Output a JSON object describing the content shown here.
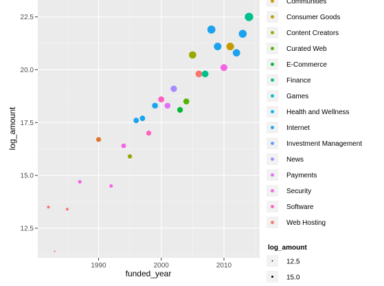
{
  "chart_data": {
    "type": "scatter",
    "xlabel": "funded_year",
    "ylabel": "log_amount",
    "xlim": [
      1980.3,
      2015.7
    ],
    "ylim": [
      11.1,
      23.3
    ],
    "x_ticks": [
      1990,
      2000,
      2010
    ],
    "y_ticks": [
      12.5,
      15.0,
      17.5,
      20.0,
      22.5
    ],
    "x_tick_labels": [
      "1990",
      "2000",
      "2010"
    ],
    "y_tick_labels": [
      "12.5",
      "15.0",
      "17.5",
      "20.0",
      "22.5"
    ],
    "grid": true,
    "legend_placement": "right",
    "color_legend": {
      "items": [
        {
          "label": "Communities",
          "color": "#C49A00"
        },
        {
          "label": "Consumer Goods",
          "color": "#B79F00"
        },
        {
          "label": "Content Creators",
          "color": "#99A800"
        },
        {
          "label": "Curated Web",
          "color": "#53B400"
        },
        {
          "label": "E-Commerce",
          "color": "#00B936"
        },
        {
          "label": "Finance",
          "color": "#00C08B"
        },
        {
          "label": "Games",
          "color": "#00BFC4"
        },
        {
          "label": "Health and Wellness",
          "color": "#00B4F0"
        },
        {
          "label": "Internet",
          "color": "#1BA3EE"
        },
        {
          "label": "Investment Management",
          "color": "#619CFF"
        },
        {
          "label": "News",
          "color": "#A58AFF"
        },
        {
          "label": "Payments",
          "color": "#DF70F8"
        },
        {
          "label": "Security",
          "color": "#F564E3"
        },
        {
          "label": "Software",
          "color": "#FF62BC"
        },
        {
          "label": "Web Hosting",
          "color": "#F8766D"
        }
      ]
    },
    "size_legend": {
      "title": "log_amount",
      "items": [
        {
          "label": "12.5",
          "value": 12.5
        },
        {
          "label": "15.0",
          "value": 15.0
        }
      ]
    },
    "points": [
      {
        "x": 1982,
        "y": 13.5,
        "color": "#F8766D"
      },
      {
        "x": 1983,
        "y": 11.4,
        "color": "#F8766D"
      },
      {
        "x": 1985,
        "y": 13.4,
        "color": "#F8766D"
      },
      {
        "x": 1987,
        "y": 14.7,
        "color": "#F564E3"
      },
      {
        "x": 1990,
        "y": 16.7,
        "color": "#E0742A"
      },
      {
        "x": 1992,
        "y": 14.5,
        "color": "#F564E3"
      },
      {
        "x": 1994,
        "y": 16.4,
        "color": "#F564E3"
      },
      {
        "x": 1995,
        "y": 15.9,
        "color": "#99A800"
      },
      {
        "x": 1996,
        "y": 17.6,
        "color": "#1BA3EE"
      },
      {
        "x": 1997,
        "y": 17.7,
        "color": "#1BA3EE"
      },
      {
        "x": 1998,
        "y": 17.0,
        "color": "#FF62BC"
      },
      {
        "x": 1999,
        "y": 18.3,
        "color": "#1BA3EE"
      },
      {
        "x": 2000,
        "y": 18.6,
        "color": "#FF62BC"
      },
      {
        "x": 2001,
        "y": 18.3,
        "color": "#DF70F8"
      },
      {
        "x": 2002,
        "y": 19.1,
        "color": "#A58AFF"
      },
      {
        "x": 2003,
        "y": 18.1,
        "color": "#00B936"
      },
      {
        "x": 2004,
        "y": 18.5,
        "color": "#53B400"
      },
      {
        "x": 2005,
        "y": 20.7,
        "color": "#99A800"
      },
      {
        "x": 2006,
        "y": 19.8,
        "color": "#F8766D"
      },
      {
        "x": 2007,
        "y": 19.8,
        "color": "#00C08B"
      },
      {
        "x": 2008,
        "y": 21.9,
        "color": "#1BA3EE"
      },
      {
        "x": 2009,
        "y": 21.1,
        "color": "#1BA3EE"
      },
      {
        "x": 2010,
        "y": 20.1,
        "color": "#F564E3"
      },
      {
        "x": 2011,
        "y": 21.1,
        "color": "#C49A00"
      },
      {
        "x": 2012,
        "y": 20.8,
        "color": "#1BA3EE"
      },
      {
        "x": 2013,
        "y": 21.7,
        "color": "#1BA3EE"
      },
      {
        "x": 2014,
        "y": 22.5,
        "color": "#00C08B"
      }
    ]
  }
}
